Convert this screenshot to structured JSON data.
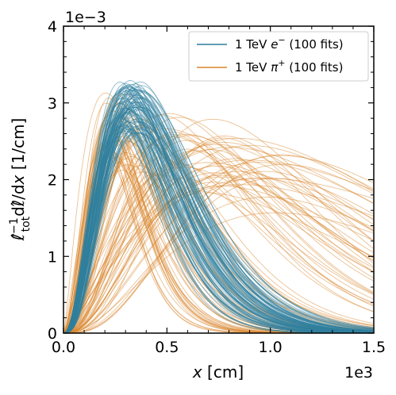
{
  "chart_data": {
    "type": "line",
    "xlabel_var": "x",
    "xlabel_unit": " [cm]",
    "x_offset_label": "1e3",
    "ylabel_main": "ℓ̂",
    "ylabel_sub": "tot",
    "ylabel_sup": "−1",
    "ylabel_rest": "dℓ̂/d",
    "ylabel_var": "x",
    "ylabel_unit": " [1/cm]",
    "y_offset_label": "1e−3",
    "xlim": [
      0,
      1500
    ],
    "ylim": [
      0,
      0.004
    ],
    "x_ticks": [
      0,
      500,
      1000,
      1500
    ],
    "x_tick_labels": [
      "0.0",
      "0.5",
      "1.0",
      "1.5"
    ],
    "y_ticks": [
      0,
      0.001,
      0.002,
      0.003,
      0.004
    ],
    "y_tick_labels": [
      "0",
      "1",
      "2",
      "3",
      "4"
    ],
    "legend_position": "top-right",
    "series": [
      {
        "name": "1 TeV e⁻ (100 fits)",
        "name_prefix": "1 TeV ",
        "name_var": "e",
        "name_sup": "−",
        "name_suffix": " (100 fits)",
        "color": "#2f7f9f",
        "family": "gamma",
        "count": 100,
        "peak_x_range": [
          270,
          380
        ],
        "peak_y_range": [
          0.0026,
          0.0033
        ]
      },
      {
        "name": "1 TeV π⁺ (100 fits)",
        "name_prefix": "1 TeV ",
        "name_var": "π",
        "name_sup": "+",
        "name_suffix": " (100 fits)",
        "color": "#d9862b",
        "family": "gamma",
        "count": 100,
        "peak_x_range": [
          200,
          1070
        ],
        "peak_y_range": [
          0.0015,
          0.0032
        ]
      }
    ]
  }
}
